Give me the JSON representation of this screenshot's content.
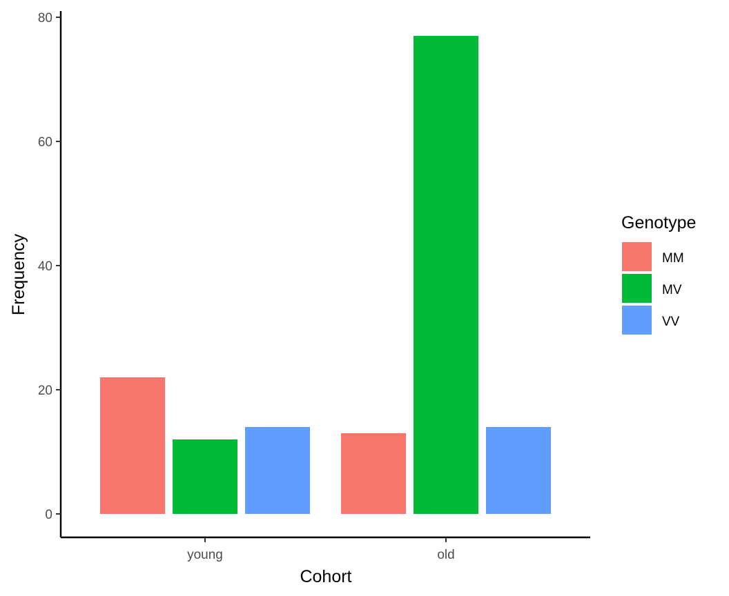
{
  "chart_data": {
    "type": "bar",
    "title": "",
    "xlabel": "Cohort",
    "ylabel": "Frequency",
    "categories": [
      "young",
      "old"
    ],
    "series": [
      {
        "name": "MM",
        "color": "#F8766D",
        "values": [
          22,
          13
        ]
      },
      {
        "name": "MV",
        "color": "#00BA38",
        "values": [
          12,
          77
        ]
      },
      {
        "name": "VV",
        "color": "#619CFF",
        "values": [
          14,
          14
        ]
      }
    ],
    "ylim": [
      0,
      80
    ],
    "yticks": [
      0,
      20,
      40,
      60,
      80
    ],
    "grid": false,
    "legend": {
      "title": "Genotype",
      "placement": "right"
    }
  }
}
